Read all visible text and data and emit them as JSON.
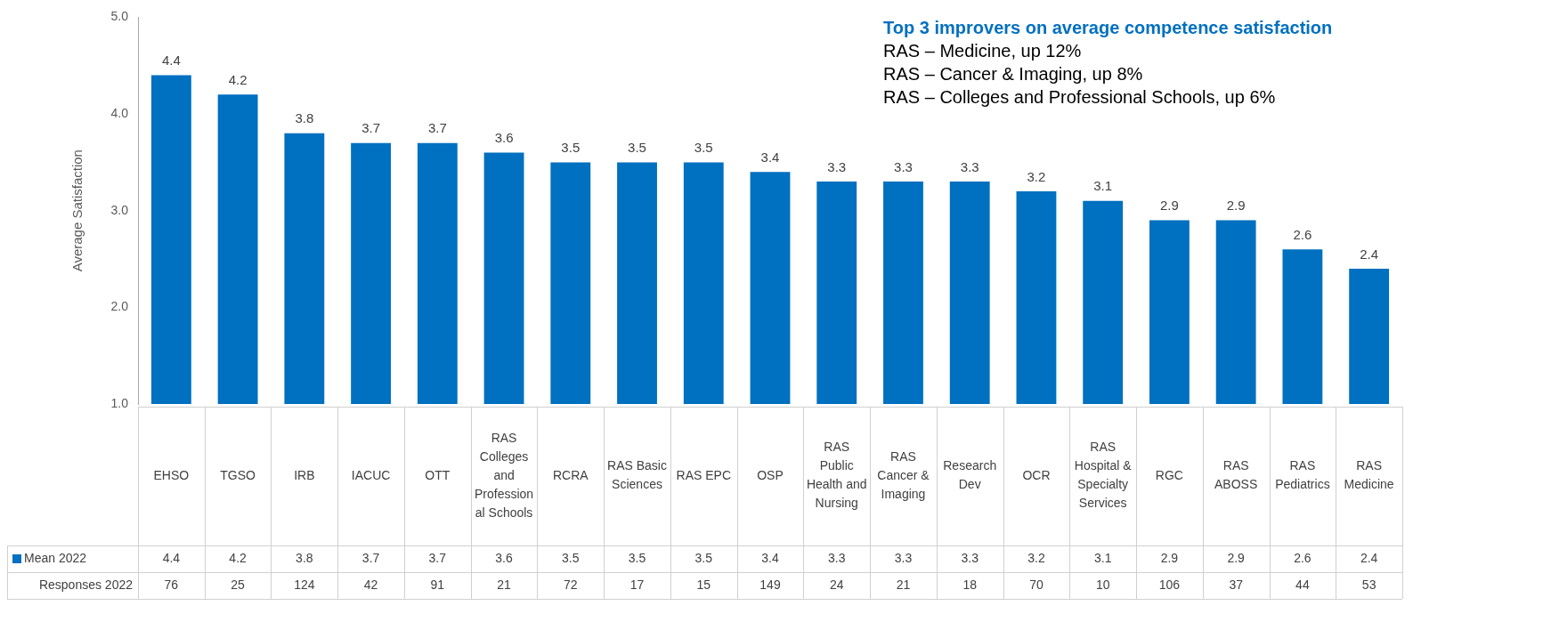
{
  "chart_data": {
    "type": "bar",
    "title": "Top 3 improvers on average competence satisfaction",
    "ylabel": "Average Satisfaction",
    "categories": [
      "EHSO",
      "TGSO",
      "IRB",
      "IACUC",
      "OTT",
      "RAS Colleges and Professional Schools",
      "RCRA",
      "RAS Basic Sciences",
      "RAS EPC",
      "OSP",
      "RAS Public Health and Nursing",
      "RAS Cancer & Imaging",
      "Research Dev",
      "OCR",
      "RAS Hospital & Specialty Services",
      "RGC",
      "RAS ABOSS",
      "RAS Pediatrics",
      "RAS Medicine"
    ],
    "series": [
      {
        "name": "Mean 2022",
        "color": "#0070c0",
        "values": [
          4.4,
          4.2,
          3.8,
          3.7,
          3.7,
          3.6,
          3.5,
          3.5,
          3.5,
          3.4,
          3.3,
          3.3,
          3.3,
          3.2,
          3.1,
          2.9,
          2.9,
          2.6,
          2.4
        ]
      }
    ],
    "ylim": [
      1,
      5
    ],
    "yticks": [
      {
        "value": 1,
        "label": "1.0"
      },
      {
        "value": 2,
        "label": "2.0"
      },
      {
        "value": 3,
        "label": "3.0"
      },
      {
        "value": 4,
        "label": "4.0"
      },
      {
        "value": 5,
        "label": "5.0"
      }
    ],
    "grid": false,
    "legend": "bottom",
    "data_labels": true,
    "annotations": [
      "Responses 2022",
      "4.4",
      "4.2",
      "3.8",
      "3.7",
      "3.7",
      "3.6",
      "3.5",
      "3.5",
      "3.5",
      "3.4",
      "3.3",
      "3.3",
      "3.3",
      "3.2",
      "3.1",
      "2.9",
      "2.9",
      "2.6",
      "2.4",
      "76",
      "25",
      "124",
      "42",
      "91",
      "21",
      "72",
      "17",
      "15",
      "149",
      "24",
      "21",
      "18",
      "70",
      "10",
      "106",
      "37",
      "44",
      "53",
      "RAS – Medicine, up 12%",
      "RAS – Cancer & Imaging, up 8%",
      "RAS – Colleges and Professional Schools, up 6%"
    ]
  }
}
